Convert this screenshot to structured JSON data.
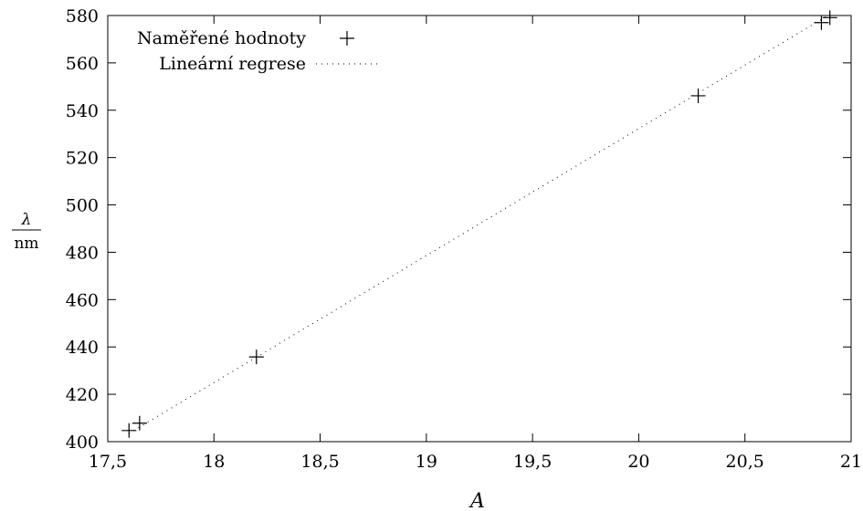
{
  "chart_data": {
    "type": "scatter",
    "xlabel": "A",
    "ylabel_numerator": "λ",
    "ylabel_denominator": "nm",
    "xlim": [
      17.5,
      21
    ],
    "ylim": [
      400,
      580
    ],
    "x_ticks": [
      17.5,
      18,
      18.5,
      19,
      19.5,
      20,
      20.5,
      21
    ],
    "x_tick_labels": [
      "17,5",
      "18",
      "18,5",
      "19",
      "19,5",
      "20",
      "20,5",
      "21"
    ],
    "y_ticks": [
      400,
      420,
      440,
      460,
      480,
      500,
      520,
      540,
      560,
      580
    ],
    "y_tick_labels": [
      "400",
      "420",
      "440",
      "460",
      "480",
      "500",
      "520",
      "540",
      "560",
      "580"
    ],
    "grid": false,
    "legend_position": "top-left",
    "series": [
      {
        "name": "Naměřené hodnoty",
        "style": "points-plus",
        "x": [
          17.6,
          17.65,
          18.2,
          20.28,
          20.86,
          20.9
        ],
        "y": [
          404.7,
          407.8,
          435.8,
          546.1,
          577.0,
          579.1
        ]
      },
      {
        "name": "Lineární regrese",
        "style": "dotted-line",
        "x": [
          17.6,
          20.9
        ],
        "y": [
          403.5,
          580.5
        ]
      }
    ]
  }
}
